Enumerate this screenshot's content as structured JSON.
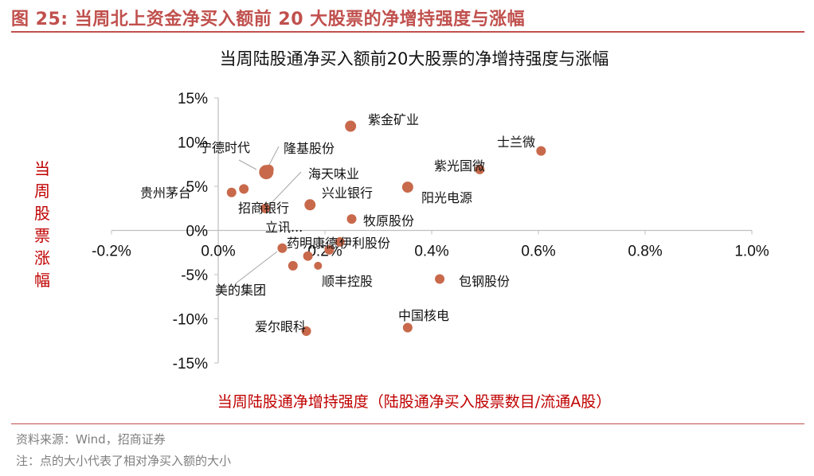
{
  "header": {
    "figure_title": "图 25:  当周北上资金净买入额前 20 大股票的净增持强度与涨幅"
  },
  "chart_data": {
    "type": "scatter",
    "title": "当周陆股通净买入额前20大股票的净增持强度与涨幅",
    "xlabel": "当周陆股通净增持强度（陆股通净买入股票数目/流通A股）",
    "ylabel": "当周股票涨幅",
    "xlim": [
      -0.002,
      0.01
    ],
    "ylim": [
      -0.15,
      0.15
    ],
    "x_ticks": [
      "-0.2%",
      "0.0%",
      "0.2%",
      "0.4%",
      "0.6%",
      "0.8%",
      "1.0%"
    ],
    "y_ticks": [
      "15%",
      "10%",
      "5%",
      "0%",
      "-5%",
      "-10%",
      "-15%"
    ],
    "marker_color": "#c8694b",
    "points": [
      {
        "name": "紫金矿业",
        "x": 0.00248,
        "y": 0.118,
        "size": 7
      },
      {
        "name": "士兰微",
        "x": 0.00605,
        "y": 0.09,
        "size": 6
      },
      {
        "name": "紫光国微",
        "x": 0.0049,
        "y": 0.069,
        "size": 6
      },
      {
        "name": "宁德时代",
        "x": 0.0009,
        "y": 0.066,
        "size": 9
      },
      {
        "name": "隆基股份",
        "x": 0.00095,
        "y": 0.069,
        "size": 6
      },
      {
        "name": "阳光电源",
        "x": 0.00355,
        "y": 0.049,
        "size": 7
      },
      {
        "name": "贵州茅台",
        "x": 0.00025,
        "y": 0.043,
        "size": 6
      },
      {
        "name": "海天味业",
        "x": 0.00048,
        "y": 0.047,
        "size": 6
      },
      {
        "name": "招商银行",
        "x": 0.00088,
        "y": 0.025,
        "size": 6
      },
      {
        "name": "兴业银行",
        "x": 0.00172,
        "y": 0.029,
        "size": 7
      },
      {
        "name": "牧原股份",
        "x": 0.0025,
        "y": 0.013,
        "size": 6
      },
      {
        "name": "立讯...",
        "x": 0.00168,
        "y": -0.029,
        "size": 6
      },
      {
        "name": "药明康德",
        "x": 0.00208,
        "y": -0.022,
        "size": 6
      },
      {
        "name": "伊利股份",
        "x": 0.00228,
        "y": -0.013,
        "size": 6
      },
      {
        "name": "美的集团",
        "x": 0.0012,
        "y": -0.02,
        "size": 6
      },
      {
        "name": "顺丰控股",
        "x": 0.0014,
        "y": -0.04,
        "size": 6
      },
      {
        "name": "包钢股份",
        "x": 0.00415,
        "y": -0.055,
        "size": 6
      },
      {
        "name": "中国核电",
        "x": 0.00355,
        "y": -0.11,
        "size": 6
      },
      {
        "name": "爱尔眼科",
        "x": 0.00165,
        "y": -0.114,
        "size": 6
      },
      {
        "name": "",
        "x": 0.00187,
        "y": -0.04,
        "size": 5
      }
    ]
  },
  "notes": {
    "source": "资料来源：Wind，招商证券",
    "note": "注：点的大小代表了相对净买入额的大小"
  }
}
